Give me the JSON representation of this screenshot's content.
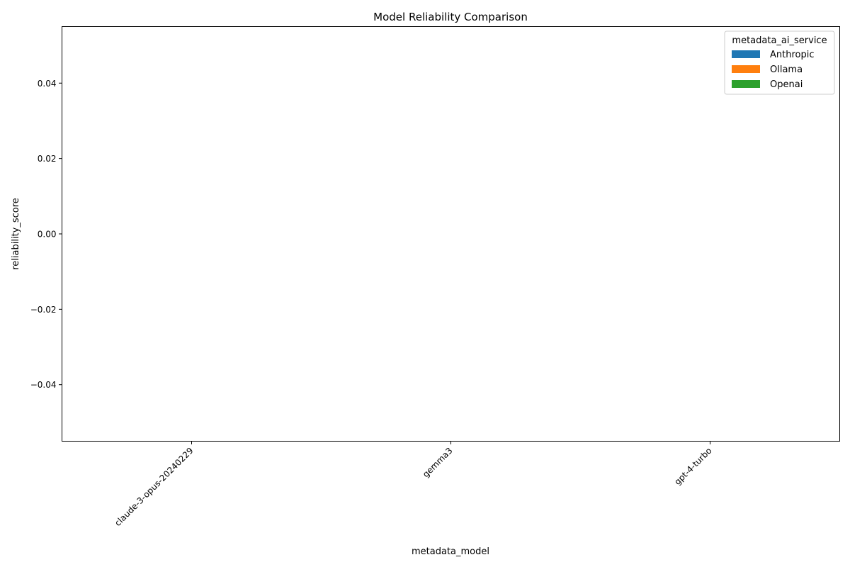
{
  "chart_data": {
    "type": "bar",
    "title": "Model Reliability Comparison",
    "xlabel": "metadata_model",
    "ylabel": "reliability_score",
    "categories": [
      "claude-3-opus-20240229",
      "gemma3",
      "gpt-4-turbo"
    ],
    "y_ticks": [
      "0.04",
      "0.02",
      "0.00",
      "−0.02",
      "−0.04"
    ],
    "y_tick_values": [
      0.04,
      0.02,
      0.0,
      -0.02,
      -0.04
    ],
    "ylim": [
      -0.055,
      0.055
    ],
    "grid": false,
    "legend": {
      "title": "metadata_ai_service",
      "placement": "top-right",
      "entries": [
        "Anthropic",
        "Ollama",
        "Openai"
      ]
    },
    "series": [
      {
        "name": "Anthropic",
        "color": "#1f77b4",
        "values": [
          null,
          null,
          null
        ]
      },
      {
        "name": "Ollama",
        "color": "#ff7f0e",
        "values": [
          null,
          null,
          null
        ]
      },
      {
        "name": "Openai",
        "color": "#2ca02c",
        "values": [
          null,
          null,
          null
        ]
      }
    ]
  }
}
